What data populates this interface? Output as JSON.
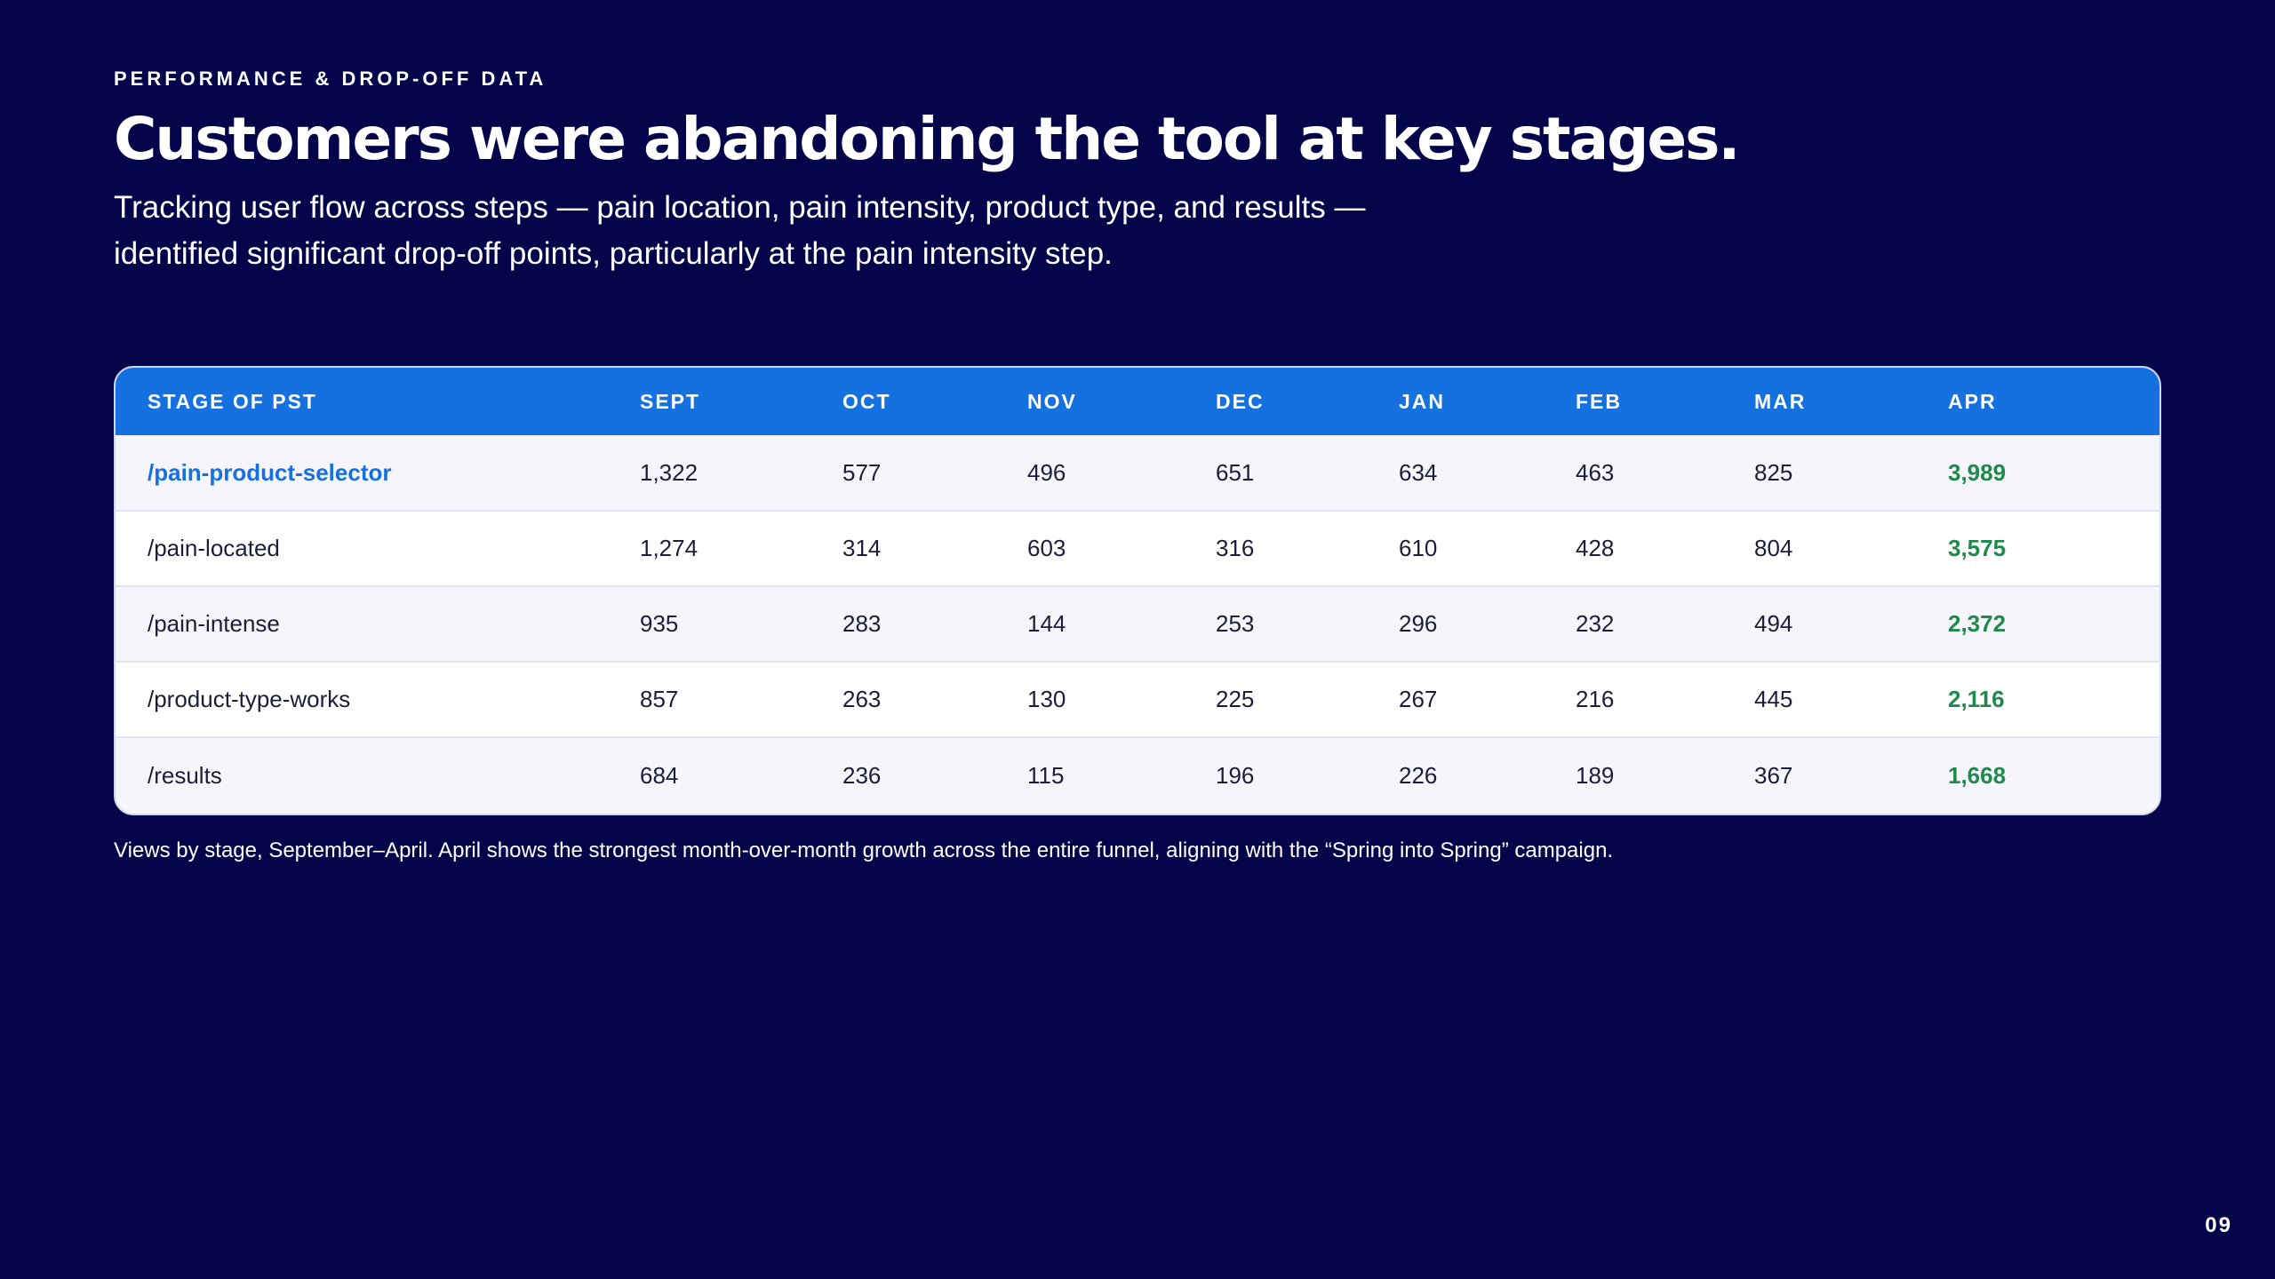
{
  "eyebrow": "PERFORMANCE & DROP-OFF DATA",
  "title": "Customers were abandoning the tool at key stages.",
  "subtitle": "Tracking user flow across steps — pain location, pain intensity, product type, and results — identified significant drop-off points, particularly at the pain intensity step.",
  "table": {
    "headers": [
      "STAGE OF PST",
      "SEPT",
      "OCT",
      "NOV",
      "DEC",
      "JAN",
      "FEB",
      "MAR",
      "APR"
    ],
    "rows": [
      [
        "/pain-product-selector",
        "1,322",
        "577",
        "496",
        "651",
        "634",
        "463",
        "825",
        "3,989"
      ],
      [
        "/pain-located",
        "1,274",
        "314",
        "603",
        "316",
        "610",
        "428",
        "804",
        "3,575"
      ],
      [
        "/pain-intense",
        "935",
        "283",
        "144",
        "253",
        "296",
        "232",
        "494",
        "2,372"
      ],
      [
        "/product-type-works",
        "857",
        "263",
        "130",
        "225",
        "267",
        "216",
        "445",
        "2,116"
      ],
      [
        "/results",
        "684",
        "236",
        "115",
        "196",
        "226",
        "189",
        "367",
        "1,668"
      ]
    ]
  },
  "footnote": "Views by stage, September–April. April shows the strongest month-over-month growth across the entire funnel, aligning with the “Spring into Spring” campaign.",
  "page_number": "09",
  "colors": {
    "background": "#03044a",
    "header_blue": "#1570e0",
    "highlight_green": "#1f8a4c"
  }
}
